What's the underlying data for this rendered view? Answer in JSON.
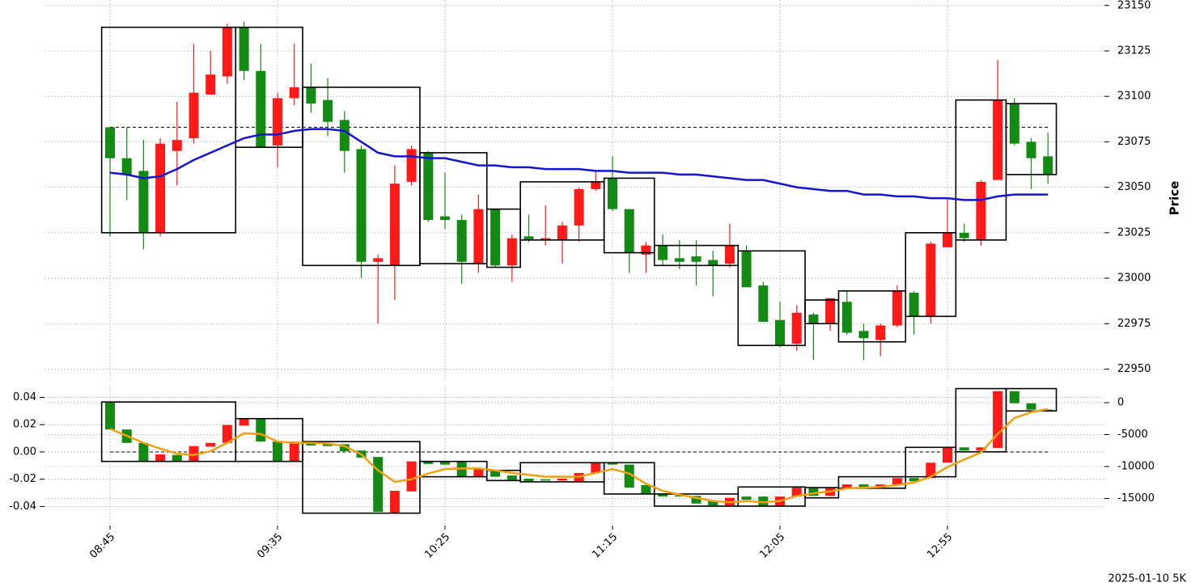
{
  "chart_data": [
    {
      "type": "candlestick",
      "ylabel": "Price",
      "categories": [
        "08:45",
        null,
        null,
        null,
        null,
        null,
        null,
        null,
        null,
        null,
        "09:35",
        null,
        null,
        null,
        null,
        null,
        null,
        null,
        null,
        null,
        "10:25",
        null,
        null,
        null,
        null,
        null,
        null,
        null,
        null,
        null,
        "11:15",
        null,
        null,
        null,
        null,
        null,
        null,
        null,
        null,
        null,
        "12:05",
        null,
        null,
        null,
        null,
        null,
        null,
        null,
        null,
        null,
        "12:55",
        null,
        null,
        null,
        null,
        null,
        null
      ],
      "open": [
        23083,
        23066,
        23059,
        23025,
        23070,
        23077,
        23101,
        23111,
        23138,
        23114,
        23073,
        23099,
        23105,
        23098,
        23087,
        23071,
        23009,
        23007,
        23053,
        23069,
        23034,
        23032,
        23008,
        23038,
        23007,
        23023,
        23021,
        23021,
        23029,
        23049,
        23055,
        23038,
        23013,
        23018,
        23011,
        23012,
        23010,
        23008,
        23015,
        22996,
        22977,
        22964,
        22980,
        22975,
        22987,
        22971,
        22966,
        22974,
        22992,
        22979,
        23017,
        23025,
        23021,
        23054,
        23096,
        23075,
        23067
      ],
      "high": [
        23083,
        23083,
        23076,
        23077,
        23097,
        23129,
        23125,
        23140,
        23141,
        23129,
        23102,
        23129,
        23118,
        23110,
        23092,
        23073,
        23013,
        23062,
        23073,
        23070,
        23058,
        23035,
        23046,
        23038,
        23024,
        23035,
        23040,
        23031,
        23050,
        23059,
        23067,
        23038,
        23020,
        23024,
        23021,
        23021,
        23015,
        23030,
        23018,
        22998,
        22987,
        22985,
        22981,
        22989,
        22993,
        22975,
        22975,
        22996,
        22993,
        23020,
        23044,
        23030,
        23054,
        23120,
        23099,
        23077,
        23080
      ],
      "low": [
        23023,
        23043,
        23016,
        23023,
        23051,
        23074,
        23101,
        23107,
        23109,
        23072,
        23061,
        23095,
        23091,
        23078,
        23058,
        23000,
        22975,
        22988,
        23051,
        23031,
        23027,
        22997,
        23003,
        23006,
        22998,
        23020,
        23018,
        23008,
        23020,
        23048,
        23037,
        23003,
        23003,
        23007,
        23005,
        22996,
        22990,
        23006,
        22995,
        22976,
        22962,
        22960,
        22955,
        22971,
        22969,
        22955,
        22957,
        22973,
        22969,
        22975,
        23017,
        23020,
        23018,
        23054,
        23073,
        23049,
        23052
      ],
      "close": [
        23066,
        23057,
        23025,
        23074,
        23076,
        23102,
        23112,
        23138,
        23114,
        23072,
        23099,
        23105,
        23096,
        23086,
        23070,
        23009,
        23011,
        23052,
        23071,
        23032,
        23032,
        23009,
        23038,
        23007,
        23022,
        23021,
        23022,
        23029,
        23049,
        23053,
        23038,
        23014,
        23018,
        23010,
        23009,
        23009,
        23007,
        23018,
        22995,
        22976,
        22963,
        22981,
        22975,
        22989,
        22970,
        22967,
        22974,
        22993,
        22979,
        23019,
        23025,
        23022,
        23053,
        23098,
        23074,
        23066,
        23057
      ],
      "up_color": "#ff1a1a",
      "down_color": "#138a13",
      "ma": {
        "color": "#1515d0",
        "values": [
          23058,
          23057,
          23055,
          23056,
          23060,
          23065,
          23069,
          23073,
          23077,
          23079,
          23079,
          23081,
          23082,
          23082,
          23081,
          23075,
          23069,
          23067,
          23067,
          23066,
          23066,
          23064,
          23062,
          23062,
          23061,
          23061,
          23060,
          23060,
          23060,
          23059,
          23059,
          23058,
          23058,
          23058,
          23057,
          23057,
          23056,
          23055,
          23054,
          23054,
          23052,
          23050,
          23049,
          23048,
          23048,
          23046,
          23046,
          23045,
          23045,
          23044,
          23044,
          23043,
          23043,
          23045,
          23046,
          23046,
          23046
        ]
      },
      "reference_price": 23083,
      "boxes": [
        {
          "start": 0,
          "end": 7,
          "high": 23138,
          "low": 23025
        },
        {
          "start": 8,
          "end": 11,
          "high": 23138,
          "low": 23072
        },
        {
          "start": 12,
          "end": 18,
          "high": 23105,
          "low": 23007
        },
        {
          "start": 19,
          "end": 22,
          "high": 23069,
          "low": 23008
        },
        {
          "start": 23,
          "end": 24,
          "high": 23038,
          "low": 23006
        },
        {
          "start": 25,
          "end": 29,
          "high": 23053,
          "low": 23021
        },
        {
          "start": 30,
          "end": 32,
          "high": 23055,
          "low": 23014
        },
        {
          "start": 33,
          "end": 37,
          "high": 23018,
          "low": 23007
        },
        {
          "start": 38,
          "end": 41,
          "high": 23015,
          "low": 22963
        },
        {
          "start": 42,
          "end": 43,
          "high": 22988,
          "low": 22975
        },
        {
          "start": 44,
          "end": 47,
          "high": 22993,
          "low": 22965
        },
        {
          "start": 48,
          "end": 50,
          "high": 23025,
          "low": 22979
        },
        {
          "start": 51,
          "end": 53,
          "high": 23098,
          "low": 23021
        },
        {
          "start": 54,
          "end": 56,
          "high": 23096,
          "low": 23057
        }
      ],
      "ylim": [
        22944,
        23153
      ],
      "yticks": [
        22950,
        22975,
        23000,
        23025,
        23050,
        23075,
        23100,
        23125,
        23150
      ],
      "grid": true,
      "footnote": "2025-01-10 5K"
    },
    {
      "type": "candlestick",
      "axis": "y2",
      "open": [
        100,
        -4200,
        -6300,
        -9200,
        -8200,
        -9200,
        -6900,
        -6300,
        -3600,
        -2500,
        -6100,
        -9200,
        -6100,
        -6500,
        -6500,
        -7500,
        -8500,
        -17300,
        -13900,
        -9200,
        -9200,
        -9200,
        -11600,
        -10600,
        -11400,
        -11900,
        -12000,
        -12200,
        -12300,
        -11000,
        -9400,
        -9700,
        -12900,
        -14300,
        -14500,
        -14600,
        -15400,
        -16100,
        -14700,
        -14700,
        -16200,
        -14700,
        -13300,
        -14600,
        -13400,
        -12800,
        -13400,
        -12800,
        -11800,
        -11800,
        -9400,
        -7000,
        -7500,
        -7100,
        1800,
        -100,
        -1100
      ],
      "close": [
        -4200,
        -6300,
        -9200,
        -8100,
        -9200,
        -6800,
        -6300,
        -3500,
        -2500,
        -6100,
        -9200,
        -6100,
        -6700,
        -6800,
        -7600,
        -8600,
        -17100,
        -13800,
        -9200,
        -9600,
        -9700,
        -11600,
        -10400,
        -11600,
        -12200,
        -12300,
        -12200,
        -11900,
        -11000,
        -9400,
        -9700,
        -13300,
        -14300,
        -14700,
        -14600,
        -15800,
        -16100,
        -14900,
        -15200,
        -16200,
        -14700,
        -13300,
        -14600,
        -13300,
        -12800,
        -13400,
        -12800,
        -11800,
        -12300,
        -9400,
        -7000,
        -7500,
        -7000,
        1800,
        -100,
        -1100,
        -1200
      ],
      "up_color": "#ff1a1a",
      "down_color": "#138a13",
      "line": {
        "color": "#f0a010",
        "values": [
          -4100,
          -5200,
          -6300,
          -7200,
          -8000,
          -8200,
          -7600,
          -6300,
          -4800,
          -4900,
          -6100,
          -6300,
          -6300,
          -6400,
          -6800,
          -8100,
          -10600,
          -12400,
          -12000,
          -11100,
          -10400,
          -10300,
          -10300,
          -10600,
          -11000,
          -11300,
          -11600,
          -11600,
          -11600,
          -11000,
          -10400,
          -11100,
          -12700,
          -13800,
          -14400,
          -14900,
          -15400,
          -15600,
          -15400,
          -15600,
          -15400,
          -14600,
          -14200,
          -13900,
          -13400,
          -13300,
          -13200,
          -12900,
          -12500,
          -11600,
          -10100,
          -8900,
          -7800,
          -4900,
          -2400,
          -1500,
          -1000
        ]
      },
      "boxes": [
        {
          "start": 0,
          "end": 7,
          "high": 100,
          "low": -9200
        },
        {
          "start": 8,
          "end": 11,
          "high": -2500,
          "low": -9200
        },
        {
          "start": 12,
          "end": 18,
          "high": -6100,
          "low": -17300
        },
        {
          "start": 19,
          "end": 22,
          "high": -9200,
          "low": -11600
        },
        {
          "start": 23,
          "end": 24,
          "high": -10600,
          "low": -12200
        },
        {
          "start": 25,
          "end": 29,
          "high": -9400,
          "low": -12400
        },
        {
          "start": 30,
          "end": 32,
          "high": -9400,
          "low": -14300
        },
        {
          "start": 33,
          "end": 37,
          "high": -14300,
          "low": -16200
        },
        {
          "start": 38,
          "end": 41,
          "high": -13200,
          "low": -16200
        },
        {
          "start": 42,
          "end": 43,
          "high": -13300,
          "low": -14900
        },
        {
          "start": 44,
          "end": 47,
          "high": -11600,
          "low": -13400
        },
        {
          "start": 48,
          "end": 50,
          "high": -7000,
          "low": -11600
        },
        {
          "start": 51,
          "end": 53,
          "high": 2200,
          "low": -7700
        },
        {
          "start": 54,
          "end": 56,
          "high": 2200,
          "low": -1300
        }
      ],
      "reference": 0,
      "ylim": [
        -0.054,
        0.048
      ],
      "yticks": [
        -0.04,
        -0.02,
        {
          "value": 0,
          "label": "0.00"
        },
        0.02,
        0.04
      ],
      "y2lim": [
        -19240,
        2530
      ],
      "y2ticks": [
        -15000,
        -10000,
        -5000,
        0
      ],
      "grid": true
    }
  ]
}
